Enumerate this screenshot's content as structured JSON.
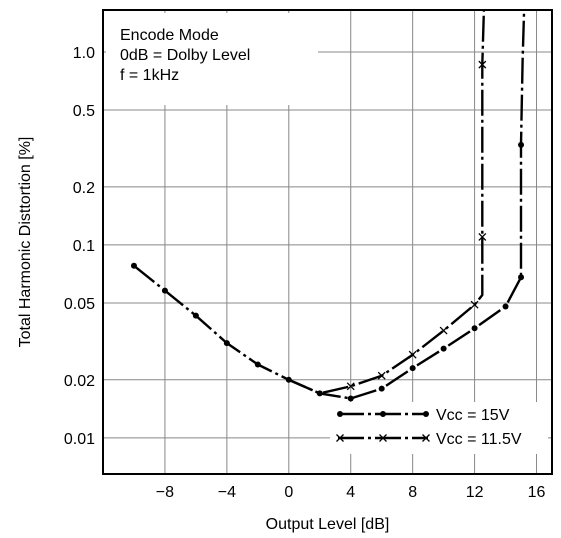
{
  "chart_data": {
    "type": "line",
    "title": "",
    "xlabel": "Output Level [dB]",
    "ylabel": "Total Harmonic Disttortion [%]",
    "x_scale": "linear",
    "y_scale": "log",
    "xlim": [
      -12,
      17
    ],
    "ylim": [
      0.0065,
      1.65
    ],
    "grid": true,
    "x_ticks": [
      -8,
      -4,
      0,
      4,
      8,
      12,
      16
    ],
    "x_tick_labels": [
      "−8",
      "−4",
      "0",
      "4",
      "8",
      "12",
      "16"
    ],
    "y_ticks": [
      0.01,
      0.02,
      0.05,
      0.1,
      0.2,
      0.5,
      1.0
    ],
    "y_tick_labels": [
      "0.01",
      "0.02",
      "0.05",
      "0.1",
      "0.2",
      "0.5",
      "1.0"
    ],
    "annotation_lines": [
      "Encode Mode",
      "0dB = Dolby Level",
      "f = 1kHz"
    ],
    "legend_position": "bottom-right",
    "series": [
      {
        "name": "Vcc = 15V",
        "legend_prefix": "Vcc",
        "legend_suffix": " = 15V",
        "marker": "dot",
        "dash": "long-dash-dot",
        "x": [
          -10,
          -8,
          -6,
          -4,
          -2,
          0,
          2,
          4,
          6,
          8,
          10,
          12,
          14,
          15,
          15.0,
          15.1,
          15.2
        ],
        "y": [
          0.078,
          0.058,
          0.043,
          0.031,
          0.024,
          0.02,
          0.017,
          0.016,
          0.018,
          0.023,
          0.029,
          0.037,
          0.048,
          0.068,
          0.33,
          0.9,
          1.65
        ],
        "marker_indices": [
          0,
          1,
          2,
          3,
          4,
          5,
          6,
          7,
          8,
          9,
          10,
          11,
          12,
          13,
          14
        ]
      },
      {
        "name": "Vcc = 11.5V",
        "legend_prefix": "Vcc",
        "legend_suffix": " = 11.5V",
        "marker": "cross",
        "dash": "long-dash-dot",
        "x": [
          0,
          2,
          4,
          6,
          8,
          10,
          12,
          12.5,
          12.5,
          12.5,
          12.6
        ],
        "y": [
          0.02,
          0.017,
          0.0185,
          0.021,
          0.027,
          0.036,
          0.049,
          0.055,
          0.11,
          0.86,
          1.65
        ],
        "marker_indices": [
          2,
          3,
          4,
          5,
          6,
          8,
          9
        ]
      }
    ]
  }
}
